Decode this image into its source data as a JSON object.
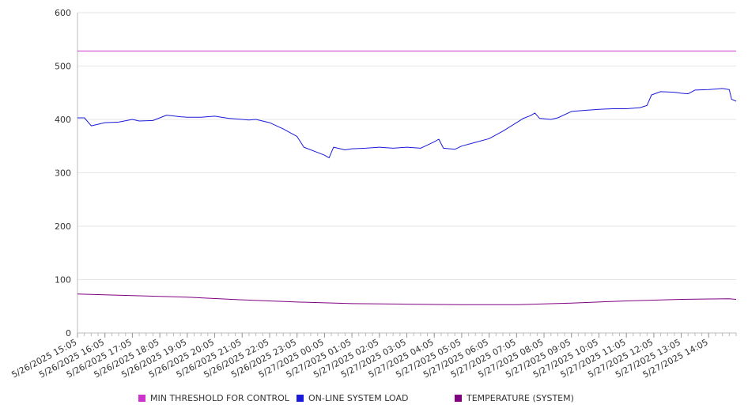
{
  "chart_data": {
    "type": "line",
    "xlabel": "",
    "ylabel": "",
    "ylim": [
      0,
      600
    ],
    "y_ticks": [
      "0",
      "100",
      "200",
      "300",
      "400",
      "500",
      "600"
    ],
    "x_tick_labels": [
      "5/26/2025 15:05",
      "5/26/2025 16:05",
      "5/26/2025 17:05",
      "5/26/2025 18:05",
      "5/26/2025 19:05",
      "5/26/2025 20:05",
      "5/26/2025 21:05",
      "5/26/2025 22:05",
      "5/26/2025 23:05",
      "5/27/2025 00:05",
      "5/27/2025 01:05",
      "5/27/2025 02:05",
      "5/27/2025 03:05",
      "5/27/2025 04:05",
      "5/27/2025 05:05",
      "5/27/2025 06:05",
      "5/27/2025 07:05",
      "5/27/2025 08:05",
      "5/27/2025 09:05",
      "5/27/2025 10:05",
      "5/27/2025 11:05",
      "5/27/2025 12:05",
      "5/27/2025 13:05",
      "5/27/2025 14:05"
    ],
    "x_range": [
      "5/26/2025 15:05",
      "5/27/2025 15:05"
    ],
    "grid": "horizontal",
    "legend_position": "bottom",
    "series": [
      {
        "name": "MIN THRESHOLD FOR CONTROL",
        "color": "#cc33cc",
        "points": [
          [
            "5/26/2025 15:05",
            528
          ],
          [
            "5/27/2025 15:05",
            528
          ]
        ]
      },
      {
        "name": "ON-LINE SYSTEM LOAD",
        "color": "#1a1adb",
        "points": [
          [
            "5/26/2025 15:05",
            403
          ],
          [
            "5/26/2025 15:20",
            403
          ],
          [
            "5/26/2025 15:35",
            388
          ],
          [
            "5/26/2025 15:50",
            391
          ],
          [
            "5/26/2025 16:05",
            394
          ],
          [
            "5/26/2025 16:35",
            395
          ],
          [
            "5/26/2025 17:05",
            400
          ],
          [
            "5/26/2025 17:20",
            397
          ],
          [
            "5/26/2025 17:50",
            398
          ],
          [
            "5/26/2025 18:05",
            403
          ],
          [
            "5/26/2025 18:20",
            408
          ],
          [
            "5/26/2025 18:50",
            405
          ],
          [
            "5/26/2025 19:05",
            404
          ],
          [
            "5/26/2025 19:35",
            404
          ],
          [
            "5/26/2025 20:05",
            406
          ],
          [
            "5/26/2025 20:35",
            402
          ],
          [
            "5/26/2025 21:05",
            400
          ],
          [
            "5/26/2025 21:20",
            399
          ],
          [
            "5/26/2025 21:35",
            400
          ],
          [
            "5/26/2025 22:05",
            394
          ],
          [
            "5/26/2025 22:35",
            382
          ],
          [
            "5/26/2025 23:05",
            368
          ],
          [
            "5/26/2025 23:20",
            348
          ],
          [
            "5/26/2025 23:50",
            338
          ],
          [
            "5/27/2025 00:05",
            333
          ],
          [
            "5/27/2025 00:15",
            328
          ],
          [
            "5/27/2025 00:25",
            348
          ],
          [
            "5/27/2025 00:50",
            343
          ],
          [
            "5/27/2025 01:05",
            345
          ],
          [
            "5/27/2025 01:35",
            346
          ],
          [
            "5/27/2025 02:05",
            348
          ],
          [
            "5/27/2025 02:35",
            346
          ],
          [
            "5/27/2025 03:05",
            348
          ],
          [
            "5/27/2025 03:35",
            346
          ],
          [
            "5/27/2025 03:50",
            352
          ],
          [
            "5/27/2025 04:05",
            358
          ],
          [
            "5/27/2025 04:15",
            363
          ],
          [
            "5/27/2025 04:25",
            346
          ],
          [
            "5/27/2025 04:50",
            344
          ],
          [
            "5/27/2025 05:05",
            350
          ],
          [
            "5/27/2025 05:35",
            357
          ],
          [
            "5/27/2025 06:05",
            364
          ],
          [
            "5/27/2025 06:35",
            378
          ],
          [
            "5/27/2025 07:05",
            394
          ],
          [
            "5/27/2025 07:20",
            402
          ],
          [
            "5/27/2025 07:35",
            407
          ],
          [
            "5/27/2025 07:45",
            412
          ],
          [
            "5/27/2025 07:55",
            402
          ],
          [
            "5/27/2025 08:20",
            400
          ],
          [
            "5/27/2025 08:35",
            403
          ],
          [
            "5/27/2025 09:05",
            415
          ],
          [
            "5/27/2025 09:35",
            417
          ],
          [
            "5/27/2025 10:05",
            419
          ],
          [
            "5/27/2025 10:35",
            420
          ],
          [
            "5/27/2025 11:05",
            420
          ],
          [
            "5/27/2025 11:35",
            422
          ],
          [
            "5/27/2025 11:50",
            426
          ],
          [
            "5/27/2025 12:00",
            446
          ],
          [
            "5/27/2025 12:20",
            452
          ],
          [
            "5/27/2025 12:50",
            451
          ],
          [
            "5/27/2025 13:05",
            449
          ],
          [
            "5/27/2025 13:20",
            448
          ],
          [
            "5/27/2025 13:35",
            455
          ],
          [
            "5/27/2025 14:05",
            456
          ],
          [
            "5/27/2025 14:35",
            458
          ],
          [
            "5/27/2025 14:50",
            456
          ],
          [
            "5/27/2025 14:55",
            438
          ],
          [
            "5/27/2025 15:05",
            434
          ]
        ]
      },
      {
        "name": "TEMPERATURE (SYSTEM)",
        "color": "#800080",
        "points": [
          [
            "5/26/2025 15:05",
            73
          ],
          [
            "5/26/2025 17:05",
            70
          ],
          [
            "5/26/2025 19:05",
            67
          ],
          [
            "5/26/2025 21:05",
            62
          ],
          [
            "5/26/2025 23:05",
            58
          ],
          [
            "5/27/2025 01:05",
            55
          ],
          [
            "5/27/2025 03:05",
            54
          ],
          [
            "5/27/2025 05:05",
            53
          ],
          [
            "5/27/2025 07:05",
            53
          ],
          [
            "5/27/2025 09:05",
            56
          ],
          [
            "5/27/2025 11:05",
            60
          ],
          [
            "5/27/2025 13:05",
            63
          ],
          [
            "5/27/2025 14:50",
            64
          ],
          [
            "5/27/2025 15:05",
            63
          ]
        ]
      }
    ]
  }
}
